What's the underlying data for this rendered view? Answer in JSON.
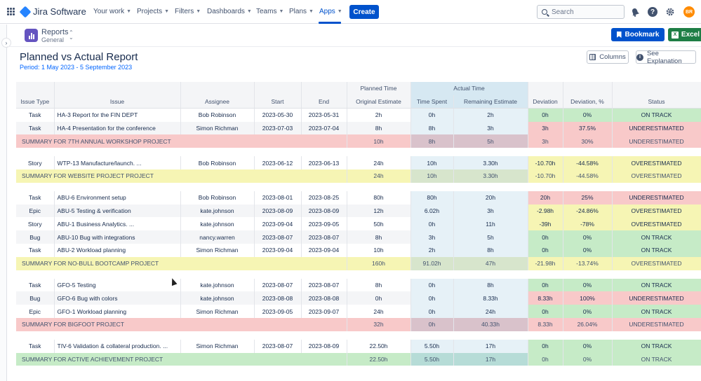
{
  "topnav": {
    "brand": "Jira Software",
    "items": [
      {
        "label": "Your work",
        "active": false
      },
      {
        "label": "Projects",
        "active": false
      },
      {
        "label": "Filters",
        "active": false
      },
      {
        "label": "Dashboards",
        "active": false
      },
      {
        "label": "Teams",
        "active": false
      },
      {
        "label": "Plans",
        "active": false
      },
      {
        "label": "Apps",
        "active": true
      }
    ],
    "create_label": "Create",
    "search_placeholder": "Search",
    "avatar_initials": "BR",
    "accent_color": "#0052cc"
  },
  "app": {
    "title": "Reports",
    "subtitle": "General",
    "bookmark_label": "Bookmark",
    "excel_label": "Excel"
  },
  "report": {
    "title": "Planned vs Actual Report",
    "period": "Period: 1 May 2023 - 5 September 2023",
    "columns_label": "Columns",
    "explain_label": "See Explanation"
  },
  "table": {
    "group_headers": {
      "planned": "Planned Time",
      "actual": "Actual Time"
    },
    "headers": [
      "Issue Type",
      "Issue",
      "Assignee",
      "Start",
      "End",
      "Original Estimate",
      "Time Spent",
      "Remaining Estimate",
      "Deviation",
      "Deviation, %",
      "Status"
    ],
    "rows": [
      {
        "kind": "row",
        "type": "Task",
        "issue": "HA-3 Report for the FIN DEPT",
        "assignee": "Bob Robinson",
        "start": "2023-05-30",
        "end": "2023-05-31",
        "orig": "2h",
        "spent": "0h",
        "remain": "2h",
        "dev": "0h",
        "devp": "0%",
        "status": "ON TRACK",
        "color": "green"
      },
      {
        "kind": "row",
        "type": "Task",
        "issue": "HA-4 Presentation for the conference",
        "assignee": "Simon Richman",
        "start": "2023-07-03",
        "end": "2023-07-04",
        "orig": "8h",
        "spent": "8h",
        "remain": "3h",
        "dev": "3h",
        "devp": "37.5%",
        "status": "UNDERESTIMATED",
        "color": "red"
      },
      {
        "kind": "summary",
        "label": "SUMMARY FOR 7TH ANNUAL WORKSHOP PROJECT",
        "orig": "10h",
        "spent": "8h",
        "remain": "5h",
        "dev": "3h",
        "devp": "30%",
        "status": "UNDERESTIMATED",
        "color": "red"
      },
      {
        "kind": "spacer"
      },
      {
        "kind": "row",
        "type": "Story",
        "issue": "WTP-13 Manufacture/launch. ...",
        "assignee": "Bob Robinson",
        "start": "2023-06-12",
        "end": "2023-06-13",
        "orig": "24h",
        "spent": "10h",
        "remain": "3.30h",
        "dev": "-10.70h",
        "devp": "-44.58%",
        "status": "OVERESTIMATED",
        "color": "yellow"
      },
      {
        "kind": "summary",
        "label": "SUMMARY FOR WEBSITE PROJECT PROJECT",
        "orig": "24h",
        "spent": "10h",
        "remain": "3.30h",
        "dev": "-10.70h",
        "devp": "-44.58%",
        "status": "OVERESTIMATED",
        "color": "yellow"
      },
      {
        "kind": "spacer"
      },
      {
        "kind": "row",
        "type": "Task",
        "issue": "ABU-6 Environment setup",
        "assignee": "Bob Robinson",
        "start": "2023-08-01",
        "end": "2023-08-25",
        "orig": "80h",
        "spent": "80h",
        "remain": "20h",
        "dev": "20h",
        "devp": "25%",
        "status": "UNDERESTIMATED",
        "color": "red"
      },
      {
        "kind": "row",
        "type": "Epic",
        "issue": "ABU-5 Testing & verification",
        "assignee": "kate.johnson",
        "start": "2023-08-09",
        "end": "2023-08-09",
        "orig": "12h",
        "spent": "6.02h",
        "remain": "3h",
        "dev": "-2.98h",
        "devp": "-24.86%",
        "status": "OVERESTIMATED",
        "color": "yellow"
      },
      {
        "kind": "row",
        "type": "Story",
        "issue": "ABU-1 Business Analytics. ...",
        "assignee": "kate.johnson",
        "start": "2023-09-04",
        "end": "2023-09-05",
        "orig": "50h",
        "spent": "0h",
        "remain": "11h",
        "dev": "-39h",
        "devp": "-78%",
        "status": "OVERESTIMATED",
        "color": "yellow"
      },
      {
        "kind": "row",
        "type": "Bug",
        "issue": "ABU-10 Bug with integrations",
        "assignee": "nancy.warren",
        "start": "2023-08-07",
        "end": "2023-08-07",
        "orig": "8h",
        "spent": "3h",
        "remain": "5h",
        "dev": "0h",
        "devp": "0%",
        "status": "ON TRACK",
        "color": "green"
      },
      {
        "kind": "row",
        "type": "Task",
        "issue": "ABU-2 Workload planning",
        "assignee": "Simon Richman",
        "start": "2023-09-04",
        "end": "2023-09-04",
        "orig": "10h",
        "spent": "2h",
        "remain": "8h",
        "dev": "0h",
        "devp": "0%",
        "status": "ON TRACK",
        "color": "green"
      },
      {
        "kind": "summary",
        "label": "SUMMARY FOR NO-BULL BOOTCAMP PROJECT",
        "orig": "160h",
        "spent": "91.02h",
        "remain": "47h",
        "dev": "-21.98h",
        "devp": "-13.74%",
        "status": "OVERESTIMATED",
        "color": "yellow"
      },
      {
        "kind": "spacer"
      },
      {
        "kind": "row",
        "type": "Task",
        "issue": "GFO-5 Testing",
        "assignee": "kate.johnson",
        "start": "2023-08-07",
        "end": "2023-08-07",
        "orig": "8h",
        "spent": "0h",
        "remain": "8h",
        "dev": "0h",
        "devp": "0%",
        "status": "ON TRACK",
        "color": "green"
      },
      {
        "kind": "row",
        "type": "Bug",
        "issue": "GFO-6 Bug with colors",
        "assignee": "kate.johnson",
        "start": "2023-08-08",
        "end": "2023-08-08",
        "orig": "0h",
        "spent": "0h",
        "remain": "8.33h",
        "dev": "8.33h",
        "devp": "100%",
        "status": "UNDERESTIMATED",
        "color": "red"
      },
      {
        "kind": "row",
        "type": "Epic",
        "issue": "GFO-1 Workload planning",
        "assignee": "Simon Richman",
        "start": "2023-09-05",
        "end": "2023-09-07",
        "orig": "24h",
        "spent": "0h",
        "remain": "24h",
        "dev": "0h",
        "devp": "0%",
        "status": "ON TRACK",
        "color": "green"
      },
      {
        "kind": "summary",
        "label": "SUMMARY FOR BIGFOOT PROJECT",
        "orig": "32h",
        "spent": "0h",
        "remain": "40.33h",
        "dev": "8.33h",
        "devp": "26.04%",
        "status": "UNDERESTIMATED",
        "color": "red"
      },
      {
        "kind": "spacer"
      },
      {
        "kind": "row",
        "type": "Task",
        "issue": "TIV-6 Validation & collateral production. ...",
        "assignee": "Simon Richman",
        "start": "2023-08-07",
        "end": "2023-08-09",
        "orig": "22.50h",
        "spent": "5.50h",
        "remain": "17h",
        "dev": "0h",
        "devp": "0%",
        "status": "ON TRACK",
        "color": "green"
      },
      {
        "kind": "summary",
        "label": "SUMMARY FOR ACTIVE ACHIEVEMENT PROJECT",
        "orig": "22.50h",
        "spent": "5.50h",
        "remain": "17h",
        "dev": "0h",
        "devp": "0%",
        "status": "ON TRACK",
        "color": "green"
      }
    ]
  }
}
